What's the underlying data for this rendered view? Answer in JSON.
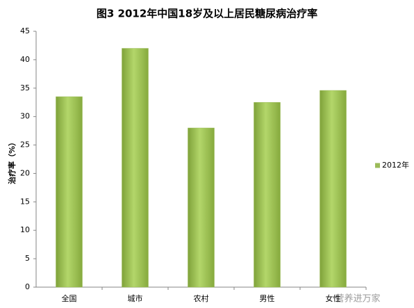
{
  "chart_data": {
    "type": "bar",
    "title": "图3 2012年中国18岁及以上居民糖尿病治疗率",
    "y_label": "治疗率（%）",
    "categories": [
      "全国",
      "城市",
      "农村",
      "男性",
      "女性"
    ],
    "series": [
      {
        "name": "2012年",
        "color": "#9bbb59",
        "values": [
          33.5,
          42,
          28,
          32.5,
          34.6
        ]
      }
    ],
    "ylim": [
      0,
      45
    ],
    "yticks": [
      0,
      5,
      10,
      15,
      20,
      25,
      30,
      35,
      40,
      45
    ],
    "grid": false,
    "legend": "right",
    "watermark": "营养进万家"
  }
}
